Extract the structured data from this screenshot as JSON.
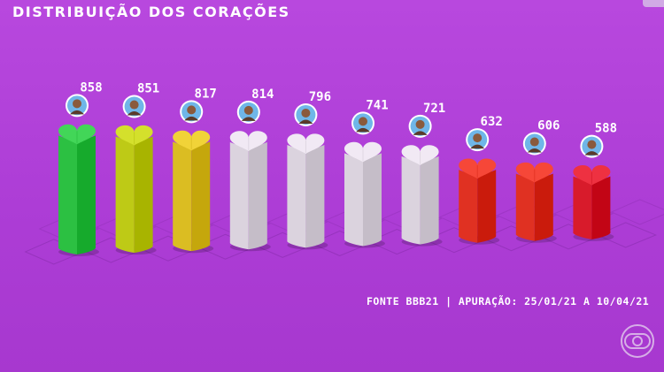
{
  "chart_data": {
    "type": "bar",
    "title": "DISTRIBUIÇÃO DOS CORAÇÕES",
    "categories": [
      "",
      "",
      "",
      "",
      "",
      "",
      "",
      "",
      "",
      ""
    ],
    "values": [
      858,
      851,
      817,
      814,
      796,
      741,
      721,
      632,
      606,
      588
    ],
    "value_labels": [
      "858",
      "851",
      "817",
      "814",
      "796",
      "741",
      "721",
      "632",
      "606",
      "588"
    ],
    "series_colors": [
      "#34c84a",
      "#c6d21e",
      "#e3c52a",
      "#e3dbe6",
      "#e3dbe6",
      "#e3dbe6",
      "#e3dbe6",
      "#e8392a",
      "#e8392a",
      "#e02333"
    ],
    "ylim": [
      0,
      900
    ],
    "grid": false,
    "legend": "none"
  },
  "footer": {
    "source": "FONTE BBB21 | APURAÇÃO: 25/01/21 A 10/04/21"
  },
  "colors": {
    "background": "#b13fd8",
    "text": "#ffffff",
    "floor_grid": "#8e2fb4"
  },
  "icons": {
    "participant_avatar": "person-avatar-icon",
    "heart": "heart-icon",
    "broadcaster_logo": "globo-logo-icon"
  }
}
